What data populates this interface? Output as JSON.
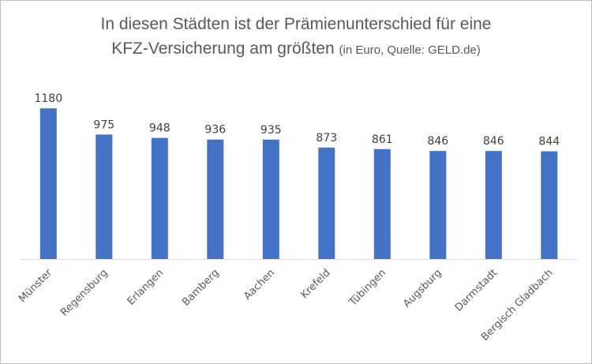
{
  "chart_data": {
    "type": "bar",
    "title_line1": "In diesen Städten ist der Prämienunterschied für eine",
    "title_line2": "KFZ-Versicherung am größten",
    "title_source": "(in Euro, Quelle: GELD.de)",
    "categories": [
      "Münster",
      "Regensburg",
      "Erlangen",
      "Bamberg",
      "Aachen",
      "Krefeld",
      "Tübingen",
      "Augsburg",
      "Darmstadt",
      "Bergisch Gladbach"
    ],
    "values": [
      1180,
      975,
      948,
      936,
      935,
      873,
      861,
      846,
      846,
      844
    ],
    "ylim": [
      0,
      1200
    ],
    "bar_color": "#4472c4",
    "axis_color": "#d9d9d9",
    "xlabel": "",
    "ylabel": "",
    "grid": false,
    "legend": false
  }
}
